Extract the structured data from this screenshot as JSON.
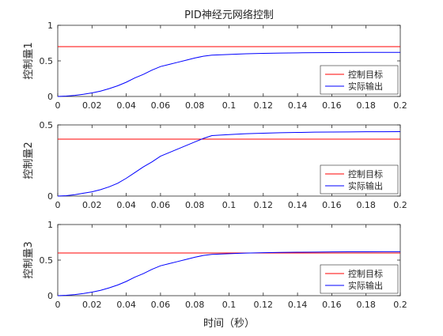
{
  "chart_data": [
    {
      "type": "line",
      "title": "PID神经元网络控制",
      "xlabel": "",
      "ylabel": "控制量1",
      "xlim": [
        0,
        0.2
      ],
      "ylim": [
        0,
        1
      ],
      "x_ticks": [
        "0",
        "0.02",
        "0.04",
        "0.06",
        "0.08",
        "0.1",
        "0.12",
        "0.14",
        "0.16",
        "0.18",
        "0.2"
      ],
      "y_ticks": [
        "0",
        "0.5",
        "1"
      ],
      "legend_position": "bottom-right",
      "grid": false,
      "series": [
        {
          "name": "控制目标",
          "color": "#ff0000",
          "x": [
            0,
            0.2
          ],
          "y": [
            0.7,
            0.7
          ]
        },
        {
          "name": "实际输出",
          "color": "#0000ff",
          "x": [
            0,
            0.005,
            0.01,
            0.015,
            0.02,
            0.025,
            0.03,
            0.035,
            0.04,
            0.045,
            0.05,
            0.055,
            0.06,
            0.065,
            0.07,
            0.075,
            0.08,
            0.085,
            0.09,
            0.1,
            0.11,
            0.12,
            0.13,
            0.14,
            0.15,
            0.16,
            0.17,
            0.18,
            0.19,
            0.2
          ],
          "y": [
            0,
            0.005,
            0.015,
            0.03,
            0.05,
            0.075,
            0.11,
            0.15,
            0.2,
            0.26,
            0.31,
            0.37,
            0.42,
            0.45,
            0.48,
            0.51,
            0.54,
            0.565,
            0.58,
            0.59,
            0.6,
            0.605,
            0.61,
            0.613,
            0.615,
            0.617,
            0.618,
            0.619,
            0.62,
            0.62
          ]
        }
      ]
    },
    {
      "type": "line",
      "title": "",
      "xlabel": "",
      "ylabel": "控制量2",
      "xlim": [
        0,
        0.2
      ],
      "ylim": [
        0,
        0.5
      ],
      "x_ticks": [
        "0",
        "0.02",
        "0.04",
        "0.06",
        "0.08",
        "0.1",
        "0.12",
        "0.14",
        "0.16",
        "0.18",
        "0.2"
      ],
      "y_ticks": [
        "0",
        "0.5"
      ],
      "legend_position": "bottom-right",
      "grid": false,
      "series": [
        {
          "name": "控制目标",
          "color": "#ff0000",
          "x": [
            0,
            0.2
          ],
          "y": [
            0.4,
            0.4
          ]
        },
        {
          "name": "实际输出",
          "color": "#0000ff",
          "x": [
            0,
            0.005,
            0.01,
            0.015,
            0.02,
            0.025,
            0.03,
            0.035,
            0.04,
            0.045,
            0.05,
            0.055,
            0.06,
            0.065,
            0.07,
            0.075,
            0.08,
            0.085,
            0.09,
            0.1,
            0.11,
            0.12,
            0.13,
            0.14,
            0.15,
            0.16,
            0.17,
            0.18,
            0.19,
            0.2
          ],
          "y": [
            0,
            0.003,
            0.01,
            0.02,
            0.03,
            0.045,
            0.065,
            0.09,
            0.125,
            0.165,
            0.205,
            0.24,
            0.28,
            0.305,
            0.33,
            0.355,
            0.38,
            0.405,
            0.425,
            0.432,
            0.438,
            0.442,
            0.445,
            0.447,
            0.449,
            0.45,
            0.451,
            0.452,
            0.452,
            0.453
          ]
        }
      ]
    },
    {
      "type": "line",
      "title": "",
      "xlabel": "时间（秒）",
      "ylabel": "控制量3",
      "xlim": [
        0,
        0.2
      ],
      "ylim": [
        0,
        1
      ],
      "x_ticks": [
        "0",
        "0.02",
        "0.04",
        "0.06",
        "0.08",
        "0.1",
        "0.12",
        "0.14",
        "0.16",
        "0.18",
        "0.2"
      ],
      "y_ticks": [
        "0",
        "0.5",
        "1"
      ],
      "legend_position": "bottom-right",
      "grid": false,
      "series": [
        {
          "name": "控制目标",
          "color": "#ff0000",
          "x": [
            0,
            0.2
          ],
          "y": [
            0.6,
            0.6
          ]
        },
        {
          "name": "实际输出",
          "color": "#0000ff",
          "x": [
            0,
            0.005,
            0.01,
            0.015,
            0.02,
            0.025,
            0.03,
            0.035,
            0.04,
            0.045,
            0.05,
            0.055,
            0.06,
            0.065,
            0.07,
            0.075,
            0.08,
            0.085,
            0.09,
            0.1,
            0.11,
            0.12,
            0.13,
            0.14,
            0.15,
            0.16,
            0.17,
            0.18,
            0.19,
            0.2
          ],
          "y": [
            0,
            0.005,
            0.015,
            0.03,
            0.05,
            0.075,
            0.11,
            0.15,
            0.2,
            0.26,
            0.31,
            0.37,
            0.42,
            0.45,
            0.48,
            0.51,
            0.54,
            0.565,
            0.58,
            0.59,
            0.598,
            0.604,
            0.608,
            0.611,
            0.613,
            0.615,
            0.616,
            0.617,
            0.618,
            0.618
          ]
        }
      ]
    }
  ]
}
